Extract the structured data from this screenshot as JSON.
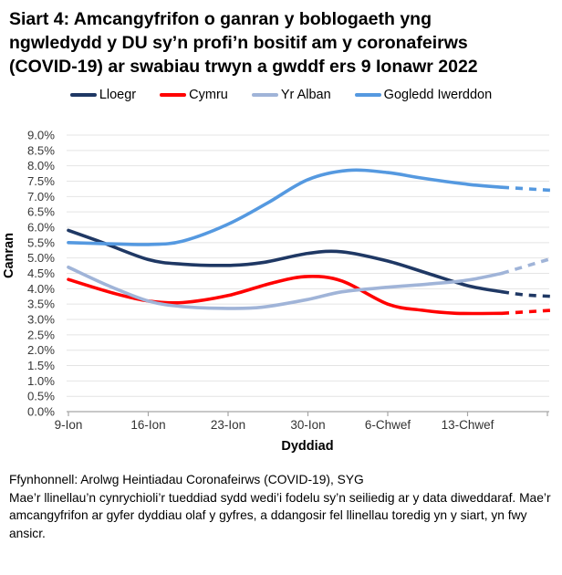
{
  "title": "Siart 4: Amcangyfrifon o ganran y boblogaeth yng ngwledydd y DU sy’n profi’n bositif am y coronafeirws (COVID-19) ar swabiau trwyn a gwddf ers 9 Ionawr 2022",
  "chart_data": {
    "type": "line",
    "title": "Siart 4: Amcangyfrifon o ganran y boblogaeth yng ngwledydd y DU sy’n profi’n bositif am y coronafeirws (COVID-19) ar swabiau trwyn a gwddf ers 9 Ionawr 2022",
    "xlabel": "Dyddiad",
    "ylabel": "Canran",
    "ylim": [
      0,
      9
    ],
    "ytick_step": 0.5,
    "ytick_suffix": "%",
    "grid": true,
    "legend_position": "top",
    "x_unit": "diwrnodau ers 9 Ionawr 2022",
    "xlim_days": [
      0,
      42.5
    ],
    "xticks": {
      "days": [
        0,
        7,
        14,
        21,
        28,
        35,
        42
      ],
      "labels": [
        "9-Ion",
        "16-Ion",
        "23-Ion",
        "30-Ion",
        "6-Chwef",
        "13-Chwef",
        ""
      ]
    },
    "dashed_from_day": 38,
    "series": [
      {
        "name": "Lloegr",
        "color": "#1f3864",
        "points": [
          [
            0,
            5.9
          ],
          [
            3,
            5.5
          ],
          [
            7,
            4.95
          ],
          [
            10,
            4.8
          ],
          [
            14,
            4.76
          ],
          [
            17,
            4.85
          ],
          [
            21,
            5.15
          ],
          [
            24,
            5.2
          ],
          [
            28,
            4.9
          ],
          [
            31.5,
            4.5
          ],
          [
            35,
            4.1
          ],
          [
            38,
            3.9
          ]
        ],
        "dashed_points": [
          [
            38,
            3.9
          ],
          [
            40,
            3.8
          ],
          [
            42.5,
            3.75
          ]
        ]
      },
      {
        "name": "Cymru",
        "color": "#ff0000",
        "points": [
          [
            0,
            4.3
          ],
          [
            4,
            3.85
          ],
          [
            7,
            3.6
          ],
          [
            10,
            3.55
          ],
          [
            14,
            3.78
          ],
          [
            18,
            4.2
          ],
          [
            21,
            4.4
          ],
          [
            24,
            4.25
          ],
          [
            28,
            3.5
          ],
          [
            31,
            3.3
          ],
          [
            34,
            3.2
          ],
          [
            38,
            3.2
          ]
        ],
        "dashed_points": [
          [
            38,
            3.2
          ],
          [
            42.5,
            3.3
          ]
        ]
      },
      {
        "name": "Yr Alban",
        "color": "#a0b4d8",
        "points": [
          [
            0,
            4.7
          ],
          [
            3.5,
            4.1
          ],
          [
            7,
            3.6
          ],
          [
            10,
            3.42
          ],
          [
            14,
            3.36
          ],
          [
            17,
            3.4
          ],
          [
            21,
            3.65
          ],
          [
            24,
            3.9
          ],
          [
            28,
            4.05
          ],
          [
            31.5,
            4.15
          ],
          [
            35,
            4.28
          ],
          [
            38,
            4.5
          ]
        ],
        "dashed_points": [
          [
            38,
            4.5
          ],
          [
            42.5,
            5.0
          ]
        ]
      },
      {
        "name": "Gogledd Iwerddon",
        "color": "#5599e0",
        "points": [
          [
            0,
            5.5
          ],
          [
            3,
            5.47
          ],
          [
            7,
            5.44
          ],
          [
            10,
            5.55
          ],
          [
            14,
            6.1
          ],
          [
            17.5,
            6.8
          ],
          [
            21,
            7.55
          ],
          [
            24.5,
            7.85
          ],
          [
            28,
            7.78
          ],
          [
            31,
            7.6
          ],
          [
            35,
            7.4
          ],
          [
            38,
            7.3
          ]
        ],
        "dashed_points": [
          [
            38,
            7.3
          ],
          [
            42.5,
            7.2
          ]
        ]
      }
    ]
  },
  "footer": {
    "source": "Ffynhonnell: Arolwg Heintiadau Coronafeirws (COVID-19), SYG",
    "note": "Mae’r llinellau’n cynrychioli’r tueddiad sydd wedi’i fodelu sy’n seiliedig ar y data diweddaraf. Mae’r amcangyfrifon ar gyfer dyddiau olaf y gyfres, a ddangosir fel llinellau toredig yn y siart, yn fwy ansicr."
  }
}
